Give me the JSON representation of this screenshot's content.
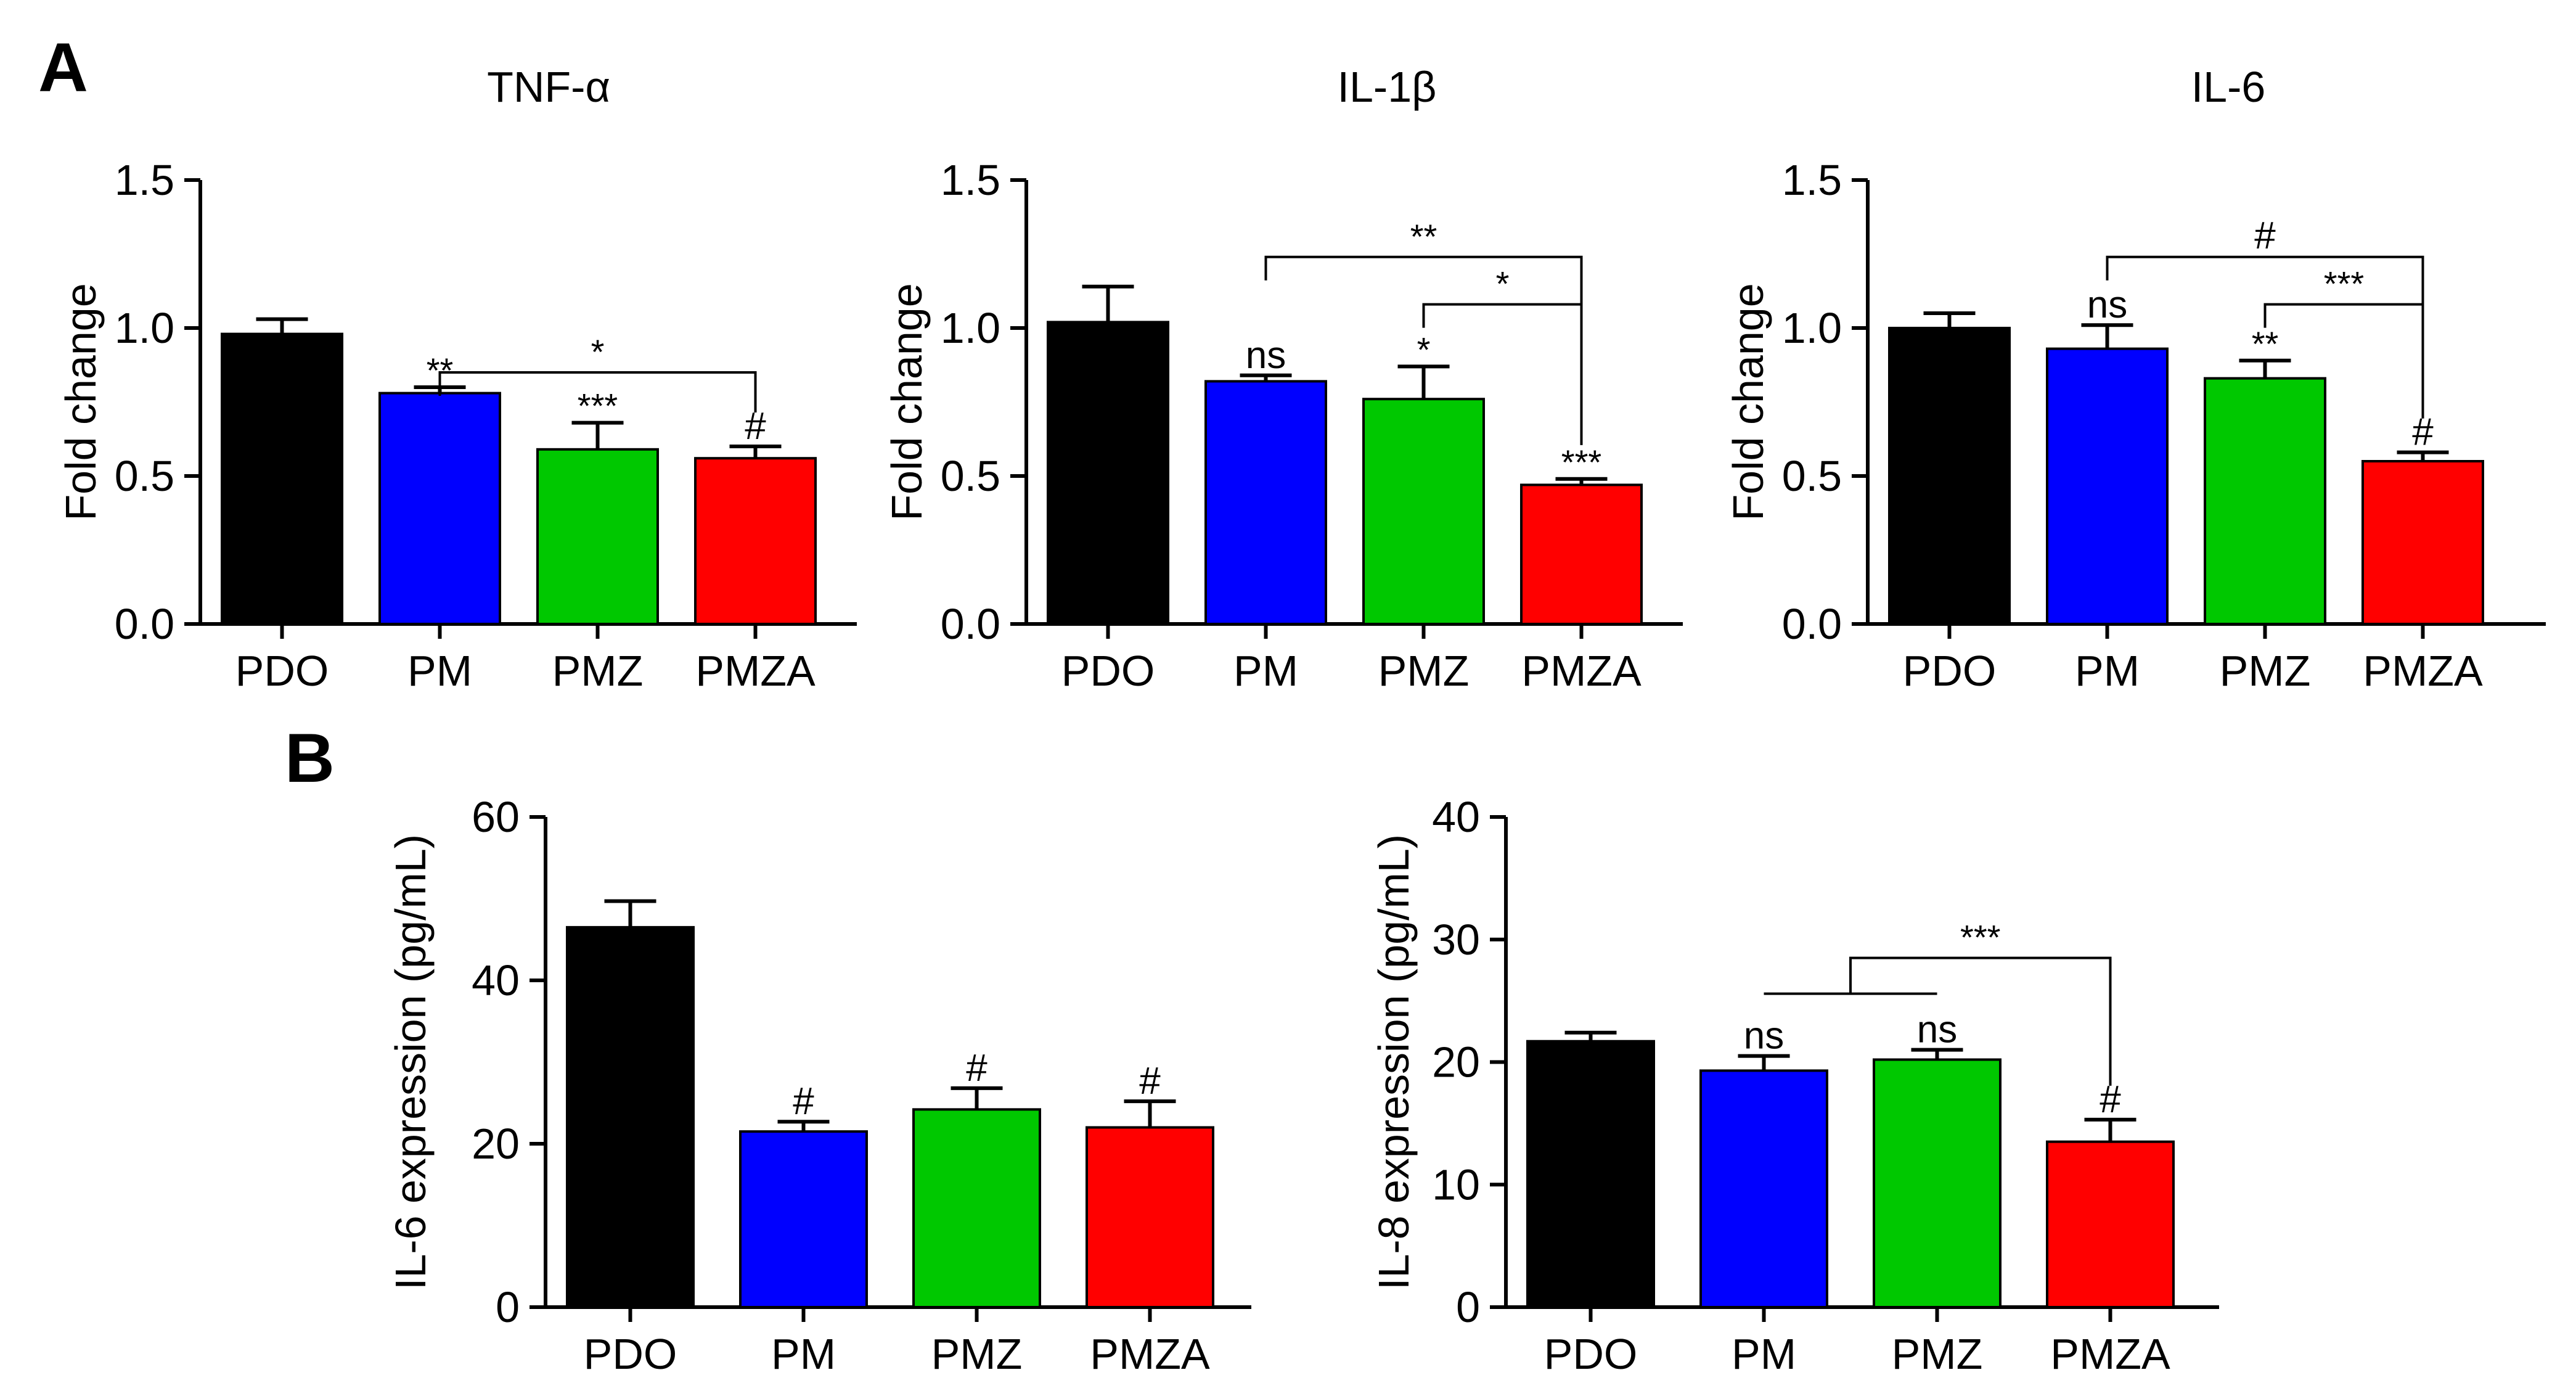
{
  "panels": {
    "A": "A",
    "B": "B"
  },
  "colors": {
    "PDO": "#000000",
    "PM": "#0000ff",
    "PMZ": "#00c800",
    "PMZA": "#ff0000",
    "axis": "#000000"
  },
  "chart_data": [
    {
      "type": "bar",
      "panel": "A",
      "title": "TNF-α",
      "ylabel": "Fold change",
      "categories": [
        "PDO",
        "PM",
        "PMZ",
        "PMZA"
      ],
      "values": [
        0.98,
        0.78,
        0.59,
        0.56
      ],
      "errors": [
        0.05,
        0.02,
        0.09,
        0.04
      ],
      "ylim": [
        0,
        1.5
      ],
      "yticks": [
        0,
        0.5,
        1,
        1.5
      ],
      "yticklabels": [
        "0.0",
        "0.5",
        "1.0",
        "1.5"
      ],
      "bar_labels": [
        "",
        "**",
        "***",
        "#"
      ],
      "brackets": [
        {
          "from": 1,
          "to": 3,
          "y": 0.85,
          "label": "*"
        }
      ]
    },
    {
      "type": "bar",
      "panel": "A",
      "title": "IL-1β",
      "ylabel": "Fold change",
      "categories": [
        "PDO",
        "PM",
        "PMZ",
        "PMZA"
      ],
      "values": [
        1.02,
        0.82,
        0.76,
        0.47
      ],
      "errors": [
        0.12,
        0.02,
        0.11,
        0.02
      ],
      "ylim": [
        0,
        1.5
      ],
      "yticks": [
        0,
        0.5,
        1,
        1.5
      ],
      "yticklabels": [
        "0.0",
        "0.5",
        "1.0",
        "1.5"
      ],
      "bar_labels": [
        "",
        "ns",
        "*",
        "***"
      ],
      "brackets": [
        {
          "from": 1,
          "to": 3,
          "y": 1.24,
          "label": "**"
        },
        {
          "from": 2,
          "to": 3,
          "y": 1.08,
          "label": "*"
        }
      ]
    },
    {
      "type": "bar",
      "panel": "A",
      "title": "IL-6",
      "ylabel": "Fold change",
      "categories": [
        "PDO",
        "PM",
        "PMZ",
        "PMZA"
      ],
      "values": [
        1.0,
        0.93,
        0.83,
        0.55
      ],
      "errors": [
        0.05,
        0.08,
        0.06,
        0.03
      ],
      "ylim": [
        0,
        1.5
      ],
      "yticks": [
        0,
        0.5,
        1,
        1.5
      ],
      "yticklabels": [
        "0.0",
        "0.5",
        "1.0",
        "1.5"
      ],
      "bar_labels": [
        "",
        "ns",
        "**",
        "#"
      ],
      "brackets": [
        {
          "from": 1,
          "to": 3,
          "y": 1.24,
          "label": "#"
        },
        {
          "from": 2,
          "to": 3,
          "y": 1.08,
          "label": "***"
        }
      ]
    },
    {
      "type": "bar",
      "panel": "B",
      "title": "",
      "ylabel": "IL-6 expression (pg/mL)",
      "categories": [
        "PDO",
        "PM",
        "PMZ",
        "PMZA"
      ],
      "values": [
        46.5,
        21.5,
        24.2,
        22
      ],
      "errors": [
        3.2,
        1.2,
        2.6,
        3.2
      ],
      "ylim": [
        0,
        60
      ],
      "yticks": [
        0,
        20,
        40,
        60
      ],
      "yticklabels": [
        "0",
        "20",
        "40",
        "60"
      ],
      "bar_labels": [
        "",
        "#",
        "#",
        "#"
      ],
      "brackets": []
    },
    {
      "type": "bar",
      "panel": "B",
      "title": "",
      "ylabel": "IL-8 expression (pg/mL)",
      "categories": [
        "PDO",
        "PM",
        "PMZ",
        "PMZA"
      ],
      "values": [
        21.7,
        19.3,
        20.2,
        13.5
      ],
      "errors": [
        0.7,
        1.2,
        0.8,
        1.8
      ],
      "ylim": [
        0,
        40
      ],
      "yticks": [
        0,
        10,
        20,
        30,
        40
      ],
      "yticklabels": [
        "0",
        "10",
        "20",
        "30",
        "40"
      ],
      "bar_labels": [
        "",
        "ns",
        "ns",
        "#"
      ],
      "brackets": [
        {
          "from_range": [
            1,
            2
          ],
          "to": 3,
          "y": 28.5,
          "label": "***"
        }
      ]
    }
  ]
}
